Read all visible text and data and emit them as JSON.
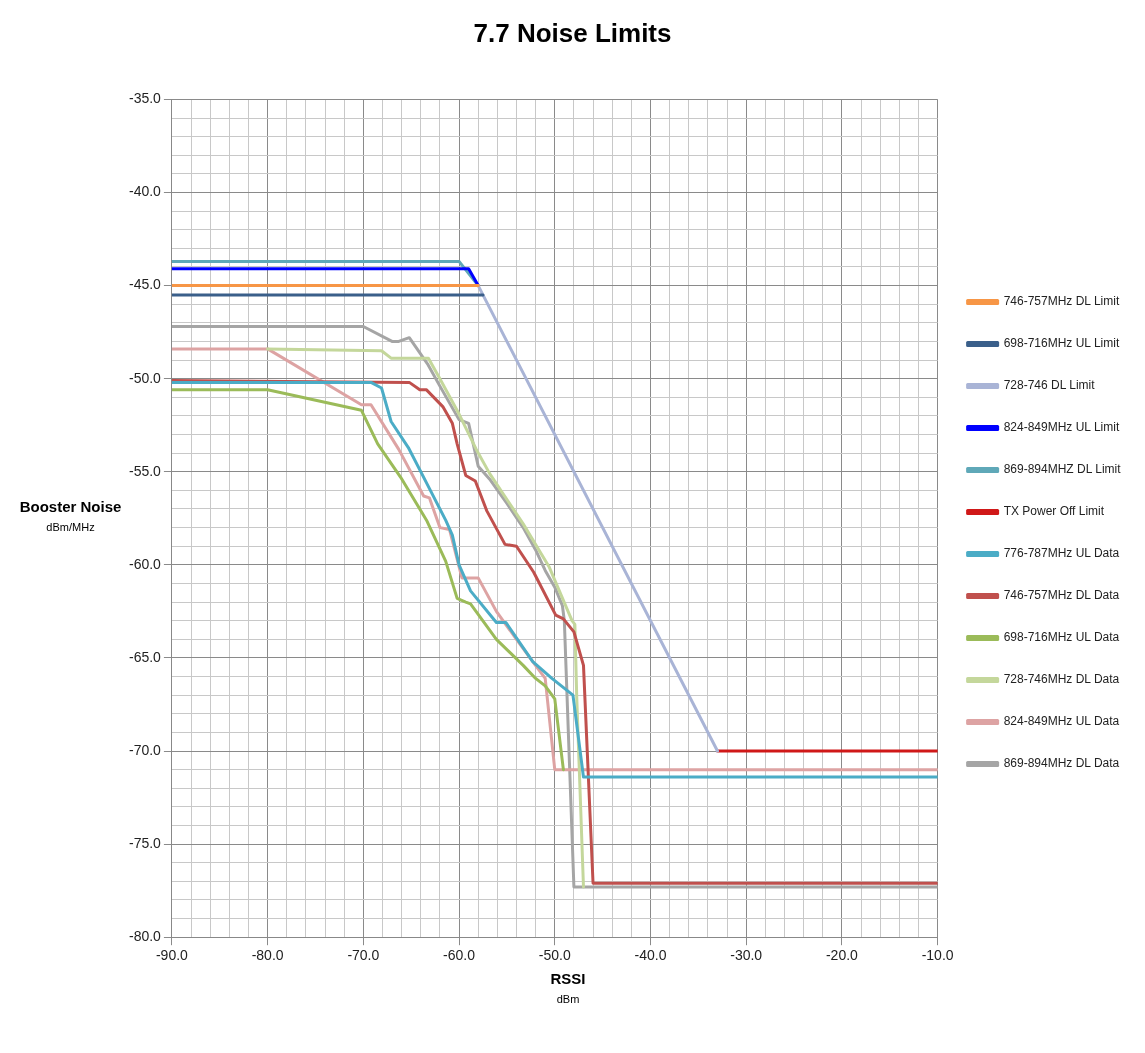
{
  "chart_data": {
    "type": "line",
    "title": "7.7 Noise Limits",
    "xlabel": "RSSI\ndBm",
    "ylabel": "Booster Noise\ndBm/MHz",
    "xlim": [
      -90,
      -10
    ],
    "ylim": [
      -80,
      -35
    ],
    "xticks": [
      {
        "value": -90,
        "label": "-90.0"
      },
      {
        "value": -88,
        "label": null
      },
      {
        "value": -86,
        "label": null
      },
      {
        "value": -84,
        "label": null
      },
      {
        "value": -82,
        "label": null
      },
      {
        "value": -80,
        "label": "-80.0"
      },
      {
        "value": -78,
        "label": null
      },
      {
        "value": -76,
        "label": null
      },
      {
        "value": -74,
        "label": null
      },
      {
        "value": -72,
        "label": null
      },
      {
        "value": -70,
        "label": "-70.0"
      },
      {
        "value": -68,
        "label": null
      },
      {
        "value": -66,
        "label": null
      },
      {
        "value": -64,
        "label": null
      },
      {
        "value": -62,
        "label": null
      },
      {
        "value": -60,
        "label": "-60.0"
      },
      {
        "value": -58,
        "label": null
      },
      {
        "value": -56,
        "label": null
      },
      {
        "value": -54,
        "label": null
      },
      {
        "value": -52,
        "label": null
      },
      {
        "value": -50,
        "label": "-50.0"
      },
      {
        "value": -48,
        "label": null
      },
      {
        "value": -46,
        "label": null
      },
      {
        "value": -44,
        "label": null
      },
      {
        "value": -42,
        "label": null
      },
      {
        "value": -40,
        "label": "-40.0"
      },
      {
        "value": -38,
        "label": null
      },
      {
        "value": -36,
        "label": null
      },
      {
        "value": -34,
        "label": null
      },
      {
        "value": -32,
        "label": null
      },
      {
        "value": -30,
        "label": "-30.0"
      },
      {
        "value": -28,
        "label": null
      },
      {
        "value": -26,
        "label": null
      },
      {
        "value": -24,
        "label": null
      },
      {
        "value": -22,
        "label": null
      },
      {
        "value": -20,
        "label": "-20.0"
      },
      {
        "value": -18,
        "label": null
      },
      {
        "value": -16,
        "label": null
      },
      {
        "value": -14,
        "label": null
      },
      {
        "value": -12,
        "label": null
      },
      {
        "value": -10,
        "label": "-10.0"
      }
    ],
    "yticks": [
      {
        "value": -80,
        "label": "-80.0"
      },
      {
        "value": -79,
        "label": null
      },
      {
        "value": -78,
        "label": null
      },
      {
        "value": -77,
        "label": null
      },
      {
        "value": -76,
        "label": null
      },
      {
        "value": -75,
        "label": "-75.0"
      },
      {
        "value": -74,
        "label": null
      },
      {
        "value": -73,
        "label": null
      },
      {
        "value": -72,
        "label": null
      },
      {
        "value": -71,
        "label": null
      },
      {
        "value": -70,
        "label": "-70.0"
      },
      {
        "value": -69,
        "label": null
      },
      {
        "value": -68,
        "label": null
      },
      {
        "value": -67,
        "label": null
      },
      {
        "value": -66,
        "label": null
      },
      {
        "value": -65,
        "label": "-65.0"
      },
      {
        "value": -64,
        "label": null
      },
      {
        "value": -63,
        "label": null
      },
      {
        "value": -62,
        "label": null
      },
      {
        "value": -61,
        "label": null
      },
      {
        "value": -60,
        "label": "-60.0"
      },
      {
        "value": -59,
        "label": null
      },
      {
        "value": -58,
        "label": null
      },
      {
        "value": -57,
        "label": null
      },
      {
        "value": -56,
        "label": null
      },
      {
        "value": -55,
        "label": "-55.0"
      },
      {
        "value": -54,
        "label": null
      },
      {
        "value": -53,
        "label": null
      },
      {
        "value": -52,
        "label": null
      },
      {
        "value": -51,
        "label": null
      },
      {
        "value": -50,
        "label": "-50.0"
      },
      {
        "value": -49,
        "label": null
      },
      {
        "value": -48,
        "label": null
      },
      {
        "value": -47,
        "label": null
      },
      {
        "value": -46,
        "label": null
      },
      {
        "value": -45,
        "label": "-45.0"
      },
      {
        "value": -44,
        "label": null
      },
      {
        "value": -43,
        "label": null
      },
      {
        "value": -42,
        "label": null
      },
      {
        "value": -41,
        "label": null
      },
      {
        "value": -40,
        "label": "-40.0"
      },
      {
        "value": -39,
        "label": null
      },
      {
        "value": -38,
        "label": null
      },
      {
        "value": -37,
        "label": null
      },
      {
        "value": -36,
        "label": null
      },
      {
        "value": -35,
        "label": "-35.0"
      }
    ],
    "grid": true,
    "legend": "right",
    "marker": "none",
    "line_style": "solid",
    "series": [
      {
        "name": "746-757MHz DL Limit",
        "color": "#f79646",
        "x": [
          -90,
          -58
        ],
        "values": [
          -45.0,
          -45.0
        ]
      },
      {
        "name": "698-716MHz UL Limit",
        "color": "#3a5f8a",
        "x": [
          -90,
          -58,
          -57.5
        ],
        "values": [
          -45.5,
          -45.5,
          -45.5
        ]
      },
      {
        "name": "728-746 DL Limit",
        "color": "#a9b4d6",
        "x": [
          -90,
          -58,
          -33
        ],
        "values": [
          -45.0,
          -45.0,
          -70.0
        ]
      },
      {
        "name": "824-849MHz UL Limit",
        "color": "#0000ff",
        "x": [
          -90,
          -59,
          -58
        ],
        "values": [
          -44.1,
          -44.1,
          -45.0
        ]
      },
      {
        "name": "869-894MHZ DL Limit",
        "color": "#5fa8b8",
        "x": [
          -90,
          -60,
          -58
        ],
        "values": [
          -43.7,
          -43.7,
          -45.0
        ]
      },
      {
        "name": "TX Power Off Limit",
        "color": "#d01818",
        "x": [
          -33,
          -10
        ],
        "values": [
          -70.0,
          -70.0
        ]
      },
      {
        "name": "776-787MHz UL Data",
        "color": "#4bacc6",
        "x": [
          -90,
          -69.2,
          -68.1,
          -67.1,
          -65.3,
          -63.4,
          -61.4,
          -60.7,
          -60,
          -58.8,
          -56.1,
          -55.1,
          -52.3,
          -50.3,
          -48.1,
          -47,
          -10
        ],
        "values": [
          -50.2,
          -50.2,
          -50.5,
          -52.3,
          -53.7,
          -55.6,
          -57.6,
          -58.4,
          -60.0,
          -61.4,
          -63.1,
          -63.1,
          -65.2,
          -66.1,
          -67.0,
          -71.4,
          -71.4
        ]
      },
      {
        "name": "746-757MHz DL Data",
        "color": "#c0504d",
        "x": [
          -90,
          -65.2,
          -64.1,
          -63.4,
          -61.7,
          -60.7,
          -60.2,
          -59.3,
          -58.3,
          -57.1,
          -55.2,
          -54,
          -52.2,
          -49.9,
          -49.1,
          -48,
          -47,
          -46,
          -10
        ],
        "values": [
          -50.1,
          -50.2,
          -50.6,
          -50.6,
          -51.5,
          -52.4,
          -53.5,
          -55.2,
          -55.5,
          -57.1,
          -58.9,
          -59.0,
          -60.4,
          -62.7,
          -62.9,
          -63.6,
          -65.4,
          -77.1,
          -77.1
        ]
      },
      {
        "name": "698-716MHz UL Data",
        "color": "#9bbb59",
        "x": [
          -90,
          -80,
          -70.2,
          -68.5,
          -66.1,
          -63.4,
          -61.4,
          -60.2,
          -59.3,
          -58.8,
          -56.1,
          -53.3,
          -52,
          -51,
          -50,
          -49.1
        ],
        "values": [
          -50.6,
          -50.6,
          -51.7,
          -53.5,
          -55.3,
          -57.6,
          -59.8,
          -61.8,
          -62.0,
          -62.1,
          -64.0,
          -65.4,
          -66.1,
          -66.5,
          -67.2,
          -71.0
        ]
      },
      {
        "name": "728-746MHz DL Data",
        "color": "#c4d79b",
        "x": [
          -80,
          -68.1,
          -67.1,
          -63.2,
          -62,
          -60,
          -58.2,
          -56.8,
          -53.3,
          -50.6,
          -48.2,
          -47.9,
          -47.7,
          -47
        ],
        "values": [
          -48.4,
          -48.5,
          -48.9,
          -48.9,
          -50.0,
          -51.9,
          -53.8,
          -55.1,
          -57.8,
          -60.1,
          -63.0,
          -63.2,
          -67.2,
          -77.3
        ]
      },
      {
        "name": "824-849MHz UL Data",
        "color": "#dda3a3",
        "x": [
          -90,
          -80,
          -70.2,
          -69.2,
          -66.3,
          -63.7,
          -63.1,
          -62,
          -61,
          -59.7,
          -58,
          -56.1,
          -54,
          -52.3,
          -51,
          -50,
          -10
        ],
        "values": [
          -48.4,
          -48.4,
          -51.4,
          -51.4,
          -53.8,
          -56.3,
          -56.4,
          -58.0,
          -58.1,
          -60.7,
          -60.7,
          -62.5,
          -64.0,
          -65.2,
          -66.1,
          -71.0,
          -71.0
        ]
      },
      {
        "name": "869-894MHz DL Data",
        "color": "#a5a5a5",
        "x": [
          -90,
          -70,
          -67,
          -66.3,
          -65.2,
          -63.3,
          -62,
          -60,
          -59,
          -58,
          -56.8,
          -55,
          -53.3,
          -52,
          -51,
          -50,
          -49.2,
          -49,
          -48,
          -10
        ],
        "values": [
          -47.2,
          -47.2,
          -48.0,
          -48.0,
          -47.8,
          -49.2,
          -50.4,
          -52.2,
          -52.4,
          -54.7,
          -55.4,
          -56.7,
          -58.0,
          -59.2,
          -60.3,
          -61.2,
          -62.2,
          -63.0,
          -77.3,
          -77.3
        ]
      }
    ]
  }
}
